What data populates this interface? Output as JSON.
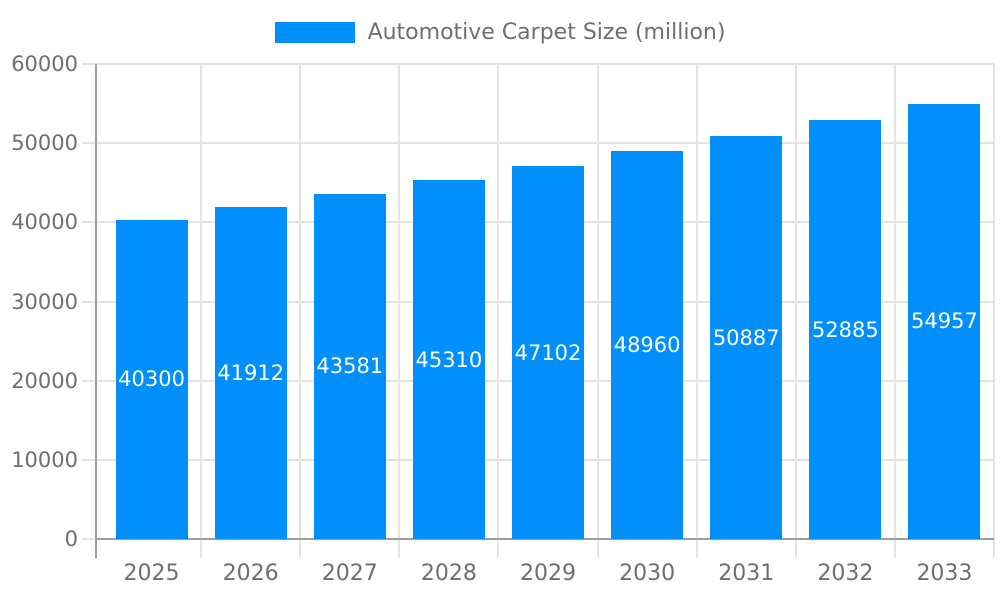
{
  "chart_data": {
    "type": "bar",
    "title": "Automotive Carpet Size (million)",
    "legend": {
      "position": "top",
      "label": "Automotive Carpet Size (million)"
    },
    "categories": [
      "2025",
      "2026",
      "2027",
      "2028",
      "2029",
      "2030",
      "2031",
      "2032",
      "2033"
    ],
    "values": [
      40300,
      41912,
      43581,
      45310,
      47102,
      48960,
      50887,
      52885,
      54957
    ],
    "data_labels": [
      "40300",
      "41912",
      "43581",
      "45310",
      "47102",
      "48960",
      "50887",
      "52885",
      "54957"
    ],
    "xlabel": "",
    "ylabel": "",
    "ylim": [
      0,
      60000
    ],
    "yticks": [
      0,
      10000,
      20000,
      30000,
      40000,
      50000,
      60000
    ],
    "ytick_labels": [
      "0",
      "10000",
      "20000",
      "30000",
      "40000",
      "50000",
      "60000"
    ],
    "grid": true,
    "data_label_position": "inside-center",
    "colors": {
      "bar": "#008FFB",
      "bar_value_label": "#FFFFFF",
      "axis_text": "#6F6F6F",
      "axis_line": "#9D9D9D",
      "gridline": "#E3E3E3",
      "background": "#FFFFFF"
    }
  }
}
